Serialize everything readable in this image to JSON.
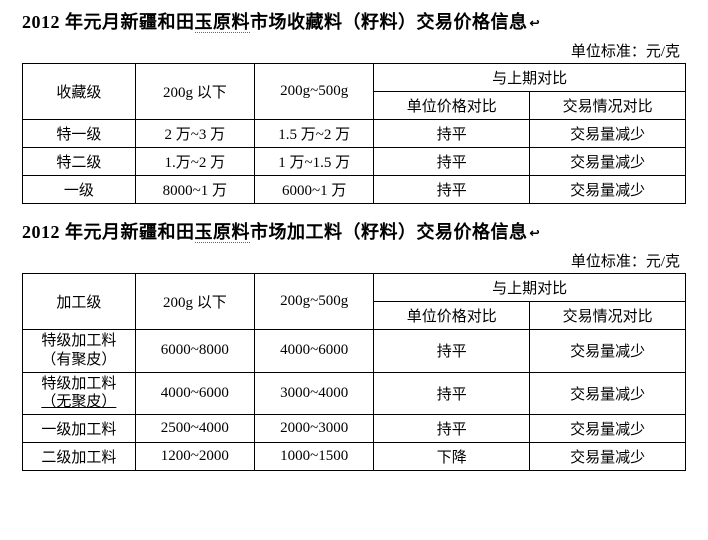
{
  "unit_label": "单位标准：元/克",
  "header_compare": "与上期对比",
  "header_sub1": "单位价格对比",
  "header_sub2": "交易情况对比",
  "header_c2": "200g 以下",
  "header_c3": "200g~500g",
  "table1": {
    "title_pre": "2012 年元月新疆和田",
    "title_dotted": "玉原料",
    "title_post": "市场收藏料（籽料）交易价格信息",
    "header_c1": "收藏级",
    "rows": [
      {
        "g": "特一级",
        "a": "2 万~3 万",
        "b": "1.5 万~2 万",
        "c": "持平",
        "d": "交易量减少"
      },
      {
        "g": "特二级",
        "a": "1.万~2 万",
        "b": "1 万~1.5 万",
        "c": "持平",
        "d": "交易量减少"
      },
      {
        "g": "一级",
        "a": "8000~1 万",
        "b": "6000~1 万",
        "c": "持平",
        "d": "交易量减少"
      }
    ]
  },
  "table2": {
    "title_pre": "2012 年元月新疆和田",
    "title_dotted": "玉原料",
    "title_post": "市场加工料（籽料）交易价格信息",
    "header_c1": "加工级",
    "rows": [
      {
        "g1": "特级加工料",
        "g2": "（有聚皮）",
        "a": "6000~8000",
        "b": "4000~6000",
        "c": "持平",
        "d": "交易量减少"
      },
      {
        "g1": "特级加工料",
        "g2u": "（无聚皮）",
        "a": "4000~6000",
        "b": "3000~4000",
        "c": "持平",
        "d": "交易量减少"
      },
      {
        "g": "一级加工料",
        "a": "2500~4000",
        "b": "2000~3000",
        "c": "持平",
        "d": "交易量减少"
      },
      {
        "g": "二级加工料",
        "a": "1200~2000",
        "b": "1000~1500",
        "c": "下降",
        "d": "交易量减少"
      }
    ]
  },
  "colors": {
    "text": "#000000",
    "bg": "#ffffff",
    "dotted": "#2e8b57"
  }
}
